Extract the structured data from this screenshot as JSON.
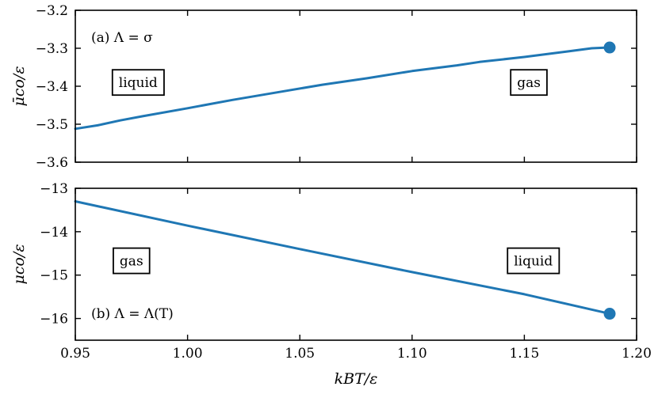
{
  "chart_data": [
    {
      "type": "line",
      "panel_label": "(a)  Λ = σ",
      "ylabel": "μ̄co/ε",
      "xlim": [
        0.95,
        1.2
      ],
      "ylim": [
        -3.6,
        -3.2
      ],
      "yticks": [
        "−3.6",
        "−3.5",
        "−3.4",
        "−3.3",
        "−3.2"
      ],
      "ytick_values": [
        -3.6,
        -3.5,
        -3.4,
        -3.3,
        -3.2
      ],
      "series": [
        {
          "color": "#1f77b4",
          "x": [
            0.95,
            0.96,
            0.97,
            0.98,
            1.0,
            1.02,
            1.04,
            1.06,
            1.08,
            1.1,
            1.12,
            1.13,
            1.15,
            1.17,
            1.18,
            1.188
          ],
          "y": [
            -3.512,
            -3.503,
            -3.49,
            -3.479,
            -3.458,
            -3.436,
            -3.416,
            -3.396,
            -3.379,
            -3.36,
            -3.345,
            -3.336,
            -3.323,
            -3.308,
            -3.3,
            -3.298
          ]
        }
      ],
      "endpoint": {
        "x": 1.188,
        "y": -3.298
      },
      "regions": [
        {
          "label": "liquid",
          "x": 0.978,
          "y": -3.39
        },
        {
          "label": "gas",
          "x": 1.152,
          "y": -3.39
        }
      ]
    },
    {
      "type": "line",
      "panel_label": "(b)  Λ = Λ(T)",
      "ylabel": "μco/ε",
      "xlabel": "kBT/ε",
      "xlim": [
        0.95,
        1.2
      ],
      "ylim": [
        -16.5,
        -13.0
      ],
      "yticks": [
        "−16",
        "−15",
        "−14",
        "−13"
      ],
      "ytick_values": [
        -16,
        -15,
        -14,
        -13
      ],
      "xticks": [
        "0.95",
        "1.00",
        "1.05",
        "1.10",
        "1.15",
        "1.20"
      ],
      "xtick_values": [
        0.95,
        1.0,
        1.05,
        1.1,
        1.15,
        1.2
      ],
      "series": [
        {
          "color": "#1f77b4",
          "x": [
            0.95,
            1.0,
            1.05,
            1.1,
            1.15,
            1.188
          ],
          "y": [
            -13.3,
            -13.86,
            -14.4,
            -14.93,
            -15.44,
            -15.89
          ]
        }
      ],
      "endpoint": {
        "x": 1.188,
        "y": -15.89
      },
      "regions": [
        {
          "label": "gas",
          "x": 0.975,
          "y": -14.67
        },
        {
          "label": "liquid",
          "x": 1.154,
          "y": -14.67
        }
      ]
    }
  ]
}
